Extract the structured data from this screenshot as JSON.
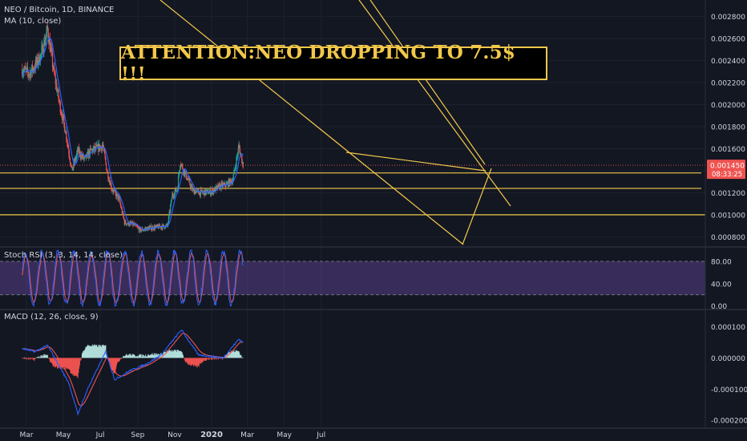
{
  "header": {
    "symbol": "NEO / Bitcoin, 1D, BINANCE",
    "ma_label": "MA (10, close)",
    "stoch_label": "Stoch RSI (3, 3, 14, 14, close)",
    "macd_label": "MACD (12, 26, close, 9)"
  },
  "annotation": {
    "text": "ATTENTION:NEO DROPPING TO 7.5$ !!!"
  },
  "colors": {
    "background": "#131722",
    "up": "#26a69a",
    "down": "#ef5350",
    "ma": "#2962ff",
    "drawing": "#f2c84b",
    "stoch_k": "#2962ff",
    "stoch_d": "#ef5350",
    "stoch_band": "#7e57c2",
    "macd": "#2962ff",
    "signal": "#ef5350",
    "price_tag": "#ef5350"
  },
  "price_tag": {
    "value": "0.001450",
    "countdown": "08:33:25"
  },
  "chart_data": [
    {
      "type": "candlestick",
      "title": "NEO / Bitcoin, 1D, BINANCE",
      "ylim": [
        0.00073,
        0.00295
      ],
      "y_ticks": [
        "0.002800",
        "0.002600",
        "0.002400",
        "0.002200",
        "0.002000",
        "0.001800",
        "0.001600",
        "0.001450",
        "0.001200",
        "0.001000",
        "0.000800"
      ],
      "x_ticks": [
        "Mar",
        "May",
        "Jul",
        "Sep",
        "Nov",
        "2020",
        "Mar",
        "May",
        "Jul"
      ],
      "series": [
        {
          "name": "MA (10, close)",
          "type": "line"
        }
      ],
      "close_path": [
        [
          "Feb 22",
          0.00232
        ],
        [
          "Mar 5",
          0.00228
        ],
        [
          "Mar 15",
          0.00235
        ],
        [
          "Mar 25",
          0.00245
        ],
        [
          "Apr 5",
          0.00268
        ],
        [
          "Apr 15",
          0.0023
        ],
        [
          "Apr 25",
          0.002
        ],
        [
          "May 5",
          0.00175
        ],
        [
          "May 15",
          0.0014
        ],
        [
          "May 25",
          0.00158
        ],
        [
          "Jun 5",
          0.0015
        ],
        [
          "Jun 15",
          0.00158
        ],
        [
          "Jun 25",
          0.0016
        ],
        [
          "Jul 5",
          0.00163
        ],
        [
          "Jul 12",
          0.0014
        ],
        [
          "Jul 20",
          0.00124
        ],
        [
          "Aug 1",
          0.00114
        ],
        [
          "Aug 10",
          0.00093
        ],
        [
          "Aug 25",
          0.00091
        ],
        [
          "Sep 5",
          0.00086
        ],
        [
          "Sep 20",
          0.00088
        ],
        [
          "Oct 5",
          0.00089
        ],
        [
          "Oct 20",
          0.0009
        ],
        [
          "Oct 28",
          0.00118
        ],
        [
          "Nov 5",
          0.00123
        ],
        [
          "Nov 10",
          0.00148
        ],
        [
          "Nov 20",
          0.00135
        ],
        [
          "Dec 1",
          0.00122
        ],
        [
          "Dec 15",
          0.0012
        ],
        [
          "Jan 1",
          0.00121
        ],
        [
          "Jan 15",
          0.00126
        ],
        [
          "Jan 25",
          0.00127
        ],
        [
          "Feb 5",
          0.00132
        ],
        [
          "Feb 15",
          0.00162
        ],
        [
          "Feb 22",
          0.00145
        ]
      ],
      "horizontal_levels": [
        0.00138,
        0.00124,
        0.001
      ]
    },
    {
      "type": "line",
      "title": "Stoch RSI (3, 3, 14, 14, close)",
      "ylim": [
        -2,
        100
      ],
      "y_ticks": [
        "80.00",
        "40.00",
        "0.00"
      ],
      "band": [
        20,
        80
      ],
      "series": [
        {
          "name": "K"
        },
        {
          "name": "D"
        }
      ]
    },
    {
      "type": "bar",
      "title": "MACD (12, 26, close, 9)",
      "ylim": [
        -0.00022,
        0.00015
      ],
      "y_ticks": [
        "0.000100",
        "0.000000",
        "-0.000100",
        "-0.000200"
      ],
      "macd_path": [
        [
          "Feb 22",
          3e-05
        ],
        [
          "Mar 15",
          2e-05
        ],
        [
          "Apr 5",
          4e-05
        ],
        [
          "May 10",
          -8e-05
        ],
        [
          "May 25",
          -0.00018
        ],
        [
          "Jun 10",
          -0.0001
        ],
        [
          "Jul 10",
          2e-05
        ],
        [
          "Jul 25",
          -7e-05
        ],
        [
          "Aug 20",
          -4e-05
        ],
        [
          "Sep 15",
          -2e-05
        ],
        [
          "Oct 10",
          1e-05
        ],
        [
          "Nov 12",
          9e-05
        ],
        [
          "Dec 10",
          1e-05
        ],
        [
          "Jan 20",
          0.0
        ],
        [
          "Feb 15",
          6e-05
        ],
        [
          "Feb 22",
          5e-05
        ]
      ],
      "series": [
        {
          "name": "MACD"
        },
        {
          "name": "Signal"
        },
        {
          "name": "Histogram"
        }
      ]
    }
  ]
}
